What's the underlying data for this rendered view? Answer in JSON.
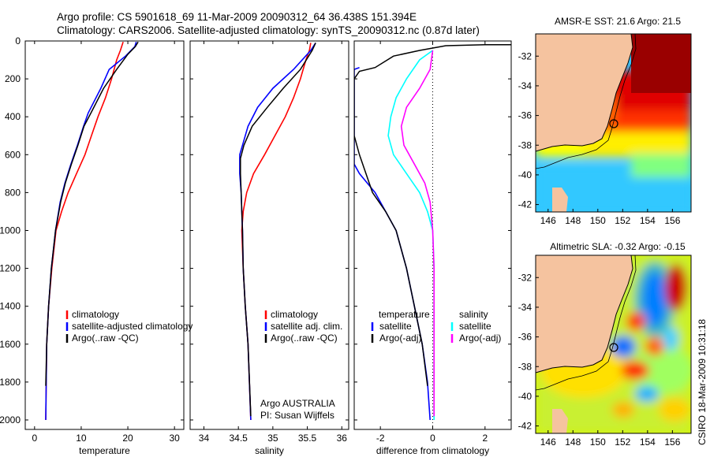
{
  "figure": {
    "title_line1": "Argo profile: CS 5901618_69 11-Mar-2009 20090312_64 36.438S 151.394E",
    "title_line2": "Climatology: CARS2006. Satellite-adjusted climatology: synTS_20090312.nc (0.87d later)",
    "side_stamp": "CSIRO 18-Mar-2009 10:31:18"
  },
  "chart_data": [
    {
      "type": "line",
      "panel": "temperature",
      "xlabel": "temperature",
      "xlim": [
        -2,
        32
      ],
      "ylim": [
        0,
        2050
      ],
      "y_reversed": true,
      "xticks": [
        0,
        10,
        20,
        30
      ],
      "yticks": [
        0,
        200,
        400,
        600,
        800,
        1000,
        1200,
        1400,
        1600,
        1800,
        2000
      ],
      "legend": [
        "climatology",
        "satellite-adjusted climatology",
        "Argo(..raw -QC)"
      ],
      "legend_placement": "lower-right",
      "series": [
        {
          "name": "climatology",
          "color": "#ff0000",
          "x": [
            19.0,
            18.4,
            17.6,
            16.5,
            15.2,
            13.6,
            12.2,
            10.8,
            9.0,
            7.2,
            5.8,
            4.6,
            3.7,
            3.0,
            2.6,
            2.4
          ],
          "y": [
            5,
            50,
            100,
            200,
            300,
            400,
            500,
            600,
            700,
            800,
            900,
            1000,
            1200,
            1400,
            1600,
            2000
          ]
        },
        {
          "name": "satellite-adjusted climatology",
          "color": "#0000ff",
          "x": [
            21.8,
            21.5,
            19.5,
            16.0,
            14.2,
            11.5,
            10.5,
            9.2,
            7.8,
            6.5,
            5.5,
            4.5,
            3.6,
            3.0,
            2.6,
            2.4
          ],
          "y": [
            5,
            30,
            80,
            150,
            250,
            380,
            450,
            550,
            650,
            750,
            850,
            1000,
            1200,
            1400,
            1600,
            2000
          ]
        },
        {
          "name": "Argo(..raw -QC)",
          "color": "#000000",
          "x": [
            22.2,
            21.6,
            20.0,
            17.6,
            14.8,
            12.3,
            10.6,
            9.3,
            7.9,
            6.6,
            5.6,
            4.5,
            3.6,
            3.0,
            2.6,
            2.4
          ],
          "y": [
            5,
            30,
            70,
            150,
            250,
            370,
            450,
            550,
            650,
            750,
            850,
            1000,
            1200,
            1400,
            1600,
            1820
          ]
        }
      ]
    },
    {
      "type": "line",
      "panel": "salinity",
      "xlabel": "salinity",
      "xlim": [
        33.8,
        36.1
      ],
      "ylim": [
        0,
        2050
      ],
      "y_reversed": true,
      "xticks": [
        34,
        34.5,
        35,
        35.5,
        36
      ],
      "legend": [
        "climatology",
        "satellite adj. clim.",
        "Argo(..raw -QC)"
      ],
      "legend_placement": "lower-right",
      "annotation": [
        "Argo AUSTRALIA",
        "PI: Susan Wijffels"
      ],
      "series": [
        {
          "name": "climatology",
          "color": "#ff0000",
          "x": [
            35.55,
            35.53,
            35.48,
            35.4,
            35.3,
            35.18,
            35.03,
            34.88,
            34.72,
            34.62,
            34.57,
            34.55,
            34.57,
            34.6,
            34.64,
            34.68
          ],
          "y": [
            10,
            50,
            100,
            200,
            300,
            400,
            500,
            600,
            700,
            800,
            900,
            1000,
            1200,
            1400,
            1600,
            2000
          ]
        },
        {
          "name": "satellite adj. clim.",
          "color": "#0000ff",
          "x": [
            35.62,
            35.55,
            35.3,
            35.0,
            34.78,
            34.64,
            34.56,
            34.52,
            34.52,
            34.54,
            34.55,
            34.56,
            34.57,
            34.6,
            34.64,
            34.68
          ],
          "y": [
            10,
            50,
            150,
            250,
            350,
            450,
            550,
            600,
            700,
            800,
            900,
            1000,
            1200,
            1400,
            1600,
            2000
          ]
        },
        {
          "name": "Argo(..raw -QC)",
          "color": "#000000",
          "x": [
            35.62,
            35.57,
            35.4,
            35.15,
            34.92,
            34.7,
            34.58,
            34.53,
            34.53,
            34.54,
            34.55,
            34.56,
            34.57,
            34.6,
            34.64,
            34.68
          ],
          "y": [
            10,
            50,
            150,
            250,
            350,
            450,
            550,
            620,
            700,
            800,
            900,
            1000,
            1200,
            1400,
            1600,
            1980
          ]
        }
      ]
    },
    {
      "type": "line",
      "panel": "difference",
      "xlabel": "difference from climatology",
      "xlim": [
        -3,
        3
      ],
      "ylim": [
        0,
        2050
      ],
      "y_reversed": true,
      "xticks": [
        -2,
        0,
        2
      ],
      "zero_line": "dotted",
      "legend_left_header": "temperature",
      "legend_right_header": "salinity",
      "legend": [
        "satellite",
        "Argo(-adj)",
        "satellite",
        "Argo(-adj)"
      ],
      "legend_placement": "lower-right",
      "series": [
        {
          "name": "satellite",
          "group": "temperature",
          "color": "#0000ff",
          "x": [
            -2.8,
            -3.0,
            -3.0,
            -3.0,
            -3.0,
            -3.0,
            -2.8,
            -2.2,
            -1.8,
            -1.4,
            -1.0,
            -0.7,
            -0.4,
            -0.2,
            -0.1
          ],
          "y": [
            140,
            150,
            300,
            500,
            600,
            650,
            700,
            800,
            900,
            1000,
            1200,
            1400,
            1600,
            1800,
            2000
          ]
        },
        {
          "name": "Argo(-adj)",
          "group": "temperature",
          "color": "#000000",
          "x": [
            3.0,
            2.0,
            0.5,
            -0.5,
            -1.5,
            -2.2,
            -2.8,
            -3.0,
            -3.0,
            -2.8,
            -2.3,
            -1.8,
            -1.4,
            -1.0,
            -0.7,
            -0.4,
            -0.2
          ],
          "y": [
            20,
            20,
            25,
            50,
            80,
            140,
            160,
            200,
            500,
            600,
            800,
            900,
            1000,
            1200,
            1400,
            1600,
            1820
          ]
        },
        {
          "name": "satellite",
          "group": "salinity",
          "color": "#00ffff",
          "x": [
            0.0,
            -0.5,
            -1.0,
            -1.4,
            -1.6,
            -1.7,
            -1.5,
            -1.0,
            -0.5,
            -0.2,
            0.0,
            0.05,
            0.05,
            0.05,
            0.05
          ],
          "y": [
            50,
            100,
            200,
            300,
            400,
            500,
            600,
            700,
            800,
            900,
            1000,
            1200,
            1400,
            1600,
            2000
          ]
        },
        {
          "name": "Argo(-adj)",
          "group": "salinity",
          "color": "#ff00ff",
          "x": [
            0.0,
            -0.1,
            -0.5,
            -1.0,
            -1.2,
            -1.1,
            -0.7,
            -0.3,
            -0.1,
            0.0,
            0.05,
            0.05,
            0.05,
            0.05
          ],
          "y": [
            50,
            150,
            250,
            350,
            450,
            550,
            650,
            750,
            850,
            1000,
            1200,
            1400,
            1600,
            1980
          ]
        }
      ]
    },
    {
      "type": "heatmap",
      "panel": "AMSR-E SST",
      "title": "AMSR-E SST: 21.6  Argo: 21.5",
      "xlim": [
        145,
        157.5
      ],
      "ylim": [
        -42.5,
        -30.5
      ],
      "xticks": [
        146,
        148,
        150,
        152,
        154,
        156
      ],
      "yticks": [
        -32,
        -34,
        -36,
        -38,
        -40,
        -42
      ],
      "float_position": {
        "lon": 151.394,
        "lat": -36.438
      }
    },
    {
      "type": "heatmap",
      "panel": "Altimetric SLA",
      "title": "Altimetric SLA: -0.32  Argo: -0.15",
      "xlim": [
        145,
        157.5
      ],
      "ylim": [
        -42.5,
        -30.5
      ],
      "xticks": [
        146,
        148,
        150,
        152,
        154,
        156
      ],
      "yticks": [
        -32,
        -34,
        -36,
        -38,
        -40,
        -42
      ],
      "float_position": {
        "lon": 151.394,
        "lat": -36.438
      }
    }
  ]
}
